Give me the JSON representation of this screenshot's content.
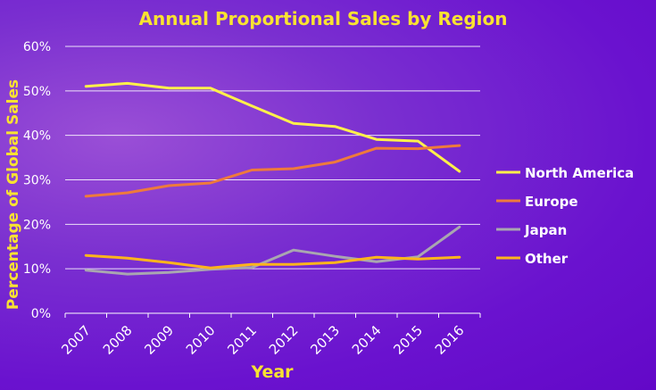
{
  "chart_data": {
    "type": "line",
    "title": "Annual Proportional Sales by Region",
    "xlabel": "Year",
    "ylabel": "Percentage of Global Sales",
    "categories": [
      "2007",
      "2008",
      "2009",
      "2010",
      "2011",
      "2012",
      "2013",
      "2014",
      "2015",
      "2016"
    ],
    "ylim": [
      0,
      60
    ],
    "yticks": [
      "0%",
      "10%",
      "20%",
      "30%",
      "40%",
      "50%",
      "60%"
    ],
    "ytick_values": [
      0,
      10,
      20,
      30,
      40,
      50,
      60
    ],
    "grid": true,
    "legend_position": "right",
    "series": [
      {
        "name": "North America",
        "color": "#fff04a",
        "values": [
          51.0,
          51.7,
          50.6,
          50.6,
          46.6,
          42.7,
          42.0,
          39.1,
          38.7,
          31.9
        ]
      },
      {
        "name": "Europe",
        "color": "#ee7a3c",
        "values": [
          26.3,
          27.1,
          28.7,
          29.3,
          32.2,
          32.5,
          34.0,
          37.1,
          37.0,
          37.7
        ]
      },
      {
        "name": "Japan",
        "color": "#a9a6b0",
        "values": [
          9.7,
          8.8,
          9.2,
          9.9,
          10.3,
          14.2,
          12.8,
          11.6,
          12.7,
          19.4
        ]
      },
      {
        "name": "Other",
        "color": "#ffb51c",
        "values": [
          13.0,
          12.4,
          11.4,
          10.2,
          11.0,
          11.0,
          11.4,
          12.6,
          12.2,
          12.6
        ]
      }
    ],
    "title_color": "#f8e231",
    "label_color": "#f8e231",
    "tick_color": "#ffffff"
  }
}
